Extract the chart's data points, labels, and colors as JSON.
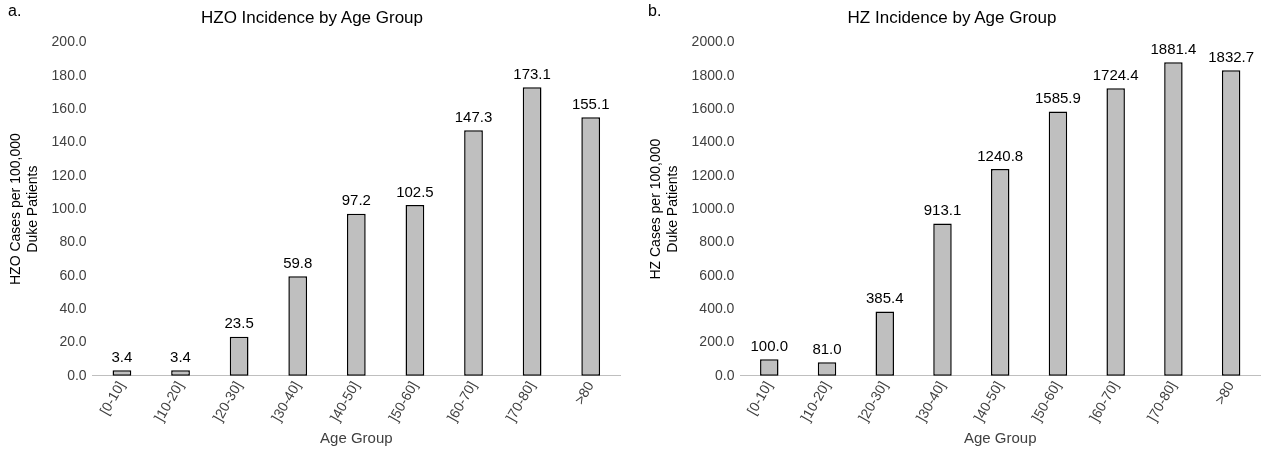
{
  "chart_data": [
    {
      "type": "bar",
      "title": "HZO Incidence by Age Group",
      "xlabel": "Age Group",
      "ylabel": "HZO Cases per 100,000\nDuke Patients",
      "annotations": [
        "a."
      ],
      "categories": [
        "[0-10]",
        "]10-20]",
        "]20-30]",
        "]30-40]",
        "]40-50]",
        "]50-60]",
        "]60-70]",
        "]70-80]",
        ">80"
      ],
      "values": [
        3.4,
        3.4,
        23.5,
        59.8,
        97.2,
        102.5,
        147.3,
        173.1,
        155.1
      ],
      "value_labels": [
        "3.4",
        "3.4",
        "23.5",
        "59.8",
        "97.2",
        "102.5",
        "147.3",
        "173.1",
        "155.1"
      ],
      "color": "#bfbfbf",
      "ylim": [
        0,
        200
      ],
      "yticks": [
        {
          "value": 0,
          "label": "0.0"
        },
        {
          "value": 20,
          "label": "20.0"
        },
        {
          "value": 40,
          "label": "40.0"
        },
        {
          "value": 60,
          "label": "60.0"
        },
        {
          "value": 80,
          "label": "80.0"
        },
        {
          "value": 100,
          "label": "100.0"
        },
        {
          "value": 120,
          "label": "120.0"
        },
        {
          "value": 140,
          "label": "140.0"
        },
        {
          "value": 160,
          "label": "160.0"
        },
        {
          "value": 180,
          "label": "180.0"
        },
        {
          "value": 200,
          "label": "200.0"
        }
      ],
      "grid": false,
      "legend": false
    },
    {
      "type": "bar",
      "title": "HZ Incidence by Age Group",
      "xlabel": "Age Group",
      "ylabel": "HZ Cases per 100,000\nDuke Patients",
      "annotations": [
        "b."
      ],
      "categories": [
        "[0-10]",
        "]10-20]",
        "]20-30]",
        "]30-40]",
        "]40-50]",
        "]50-60]",
        "]60-70]",
        "]70-80]",
        ">80"
      ],
      "values": [
        100.0,
        81.0,
        385.4,
        913.1,
        1240.8,
        1585.9,
        1724.4,
        1881.4,
        1832.7
      ],
      "value_labels": [
        "100.0",
        "81.0",
        "385.4",
        "913.1",
        "1240.8",
        "1585.9",
        "1724.4",
        "1881.4",
        "1832.7"
      ],
      "color": "#bfbfbf",
      "ylim": [
        0,
        2000
      ],
      "yticks": [
        {
          "value": 0,
          "label": "0.0"
        },
        {
          "value": 200,
          "label": "200.0"
        },
        {
          "value": 400,
          "label": "400.0"
        },
        {
          "value": 600,
          "label": "600.0"
        },
        {
          "value": 800,
          "label": "800.0"
        },
        {
          "value": 1000,
          "label": "1000.0"
        },
        {
          "value": 1200,
          "label": "1200.0"
        },
        {
          "value": 1400,
          "label": "1400.0"
        },
        {
          "value": 1600,
          "label": "1600.0"
        },
        {
          "value": 1800,
          "label": "1800.0"
        },
        {
          "value": 2000,
          "label": "2000.0"
        }
      ],
      "grid": false,
      "legend": false
    }
  ]
}
